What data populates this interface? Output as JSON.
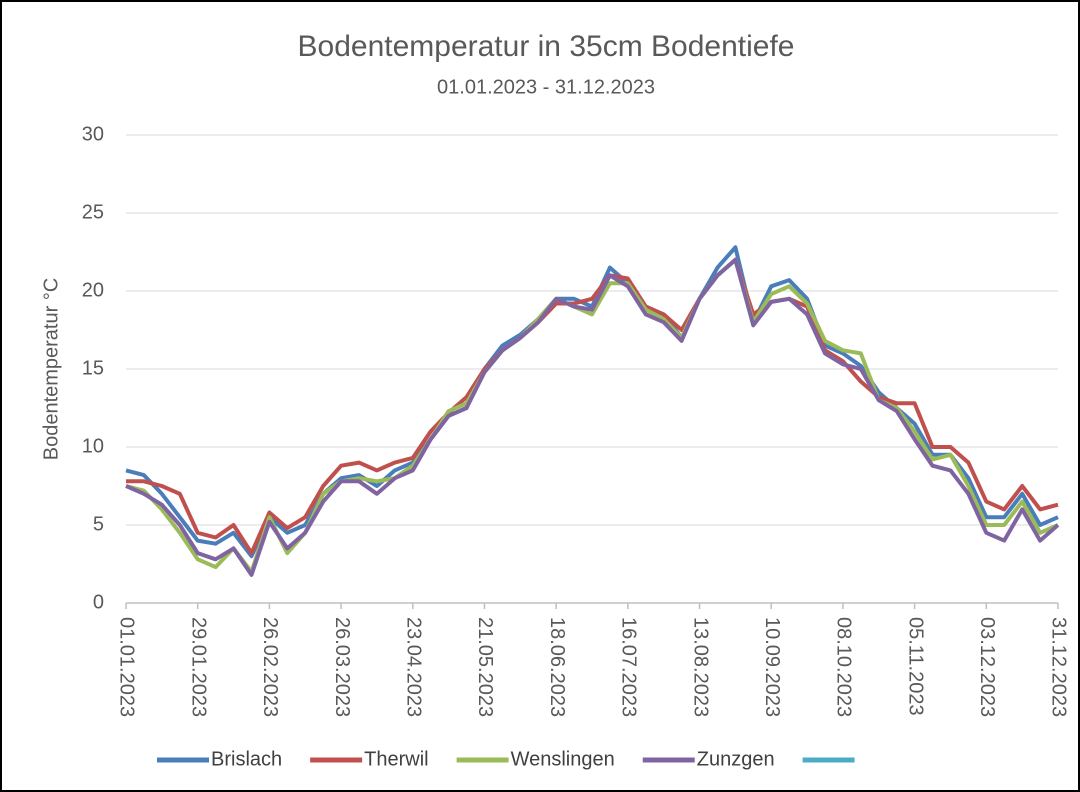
{
  "chart_data": {
    "type": "line",
    "title": "Bodentemperatur in 35cm Bodentiefe",
    "subtitle": "01.01.2023 - 31.12.2023",
    "y_label": "Bodentemperatur °C",
    "x": [
      "01.01.2023",
      "08.01.2023",
      "15.01.2023",
      "22.01.2023",
      "29.01.2023",
      "05.02.2023",
      "12.02.2023",
      "19.02.2023",
      "26.02.2023",
      "05.03.2023",
      "12.03.2023",
      "19.03.2023",
      "26.03.2023",
      "02.04.2023",
      "09.04.2023",
      "16.04.2023",
      "23.04.2023",
      "30.04.2023",
      "07.05.2023",
      "14.05.2023",
      "21.05.2023",
      "28.05.2023",
      "04.06.2023",
      "11.06.2023",
      "18.06.2023",
      "25.06.2023",
      "02.07.2023",
      "09.07.2023",
      "16.07.2023",
      "23.07.2023",
      "30.07.2023",
      "06.08.2023",
      "13.08.2023",
      "20.08.2023",
      "27.08.2023",
      "03.09.2023",
      "10.09.2023",
      "17.09.2023",
      "24.09.2023",
      "01.10.2023",
      "08.10.2023",
      "15.10.2023",
      "22.10.2023",
      "29.10.2023",
      "05.11.2023",
      "12.11.2023",
      "19.11.2023",
      "26.11.2023",
      "03.12.2023",
      "10.12.2023",
      "17.12.2023",
      "24.12.2023",
      "31.12.2023"
    ],
    "xticks": [
      "01.01.2023",
      "29.01.2023",
      "26.02.2023",
      "26.03.2023",
      "23.04.2023",
      "21.05.2023",
      "18.06.2023",
      "16.07.2023",
      "13.08.2023",
      "10.09.2023",
      "08.10.2023",
      "05.11.2023",
      "03.12.2023",
      "31.12.2023"
    ],
    "ylim": [
      0,
      30
    ],
    "yticks": [
      0,
      5,
      10,
      15,
      20,
      25,
      30
    ],
    "grid": true,
    "legend": "bottom",
    "series": [
      {
        "name": "Brislach",
        "color": "#4a7ebb",
        "values": [
          8.5,
          8.2,
          7.0,
          5.5,
          4.0,
          3.8,
          4.5,
          3.0,
          5.5,
          4.5,
          5.0,
          7.0,
          8.0,
          8.2,
          7.5,
          8.5,
          9.0,
          10.5,
          12.0,
          12.5,
          15.0,
          16.5,
          17.2,
          18.2,
          19.5,
          19.5,
          19.0,
          21.5,
          20.5,
          19.0,
          18.5,
          17.0,
          19.5,
          21.5,
          22.8,
          18.0,
          20.3,
          20.7,
          19.5,
          16.5,
          16.0,
          15.2,
          13.5,
          12.5,
          11.5,
          9.5,
          9.5,
          8.0,
          5.5,
          5.5,
          7.0,
          5.0,
          5.5
        ]
      },
      {
        "name": "Therwil",
        "color": "#c0504d",
        "values": [
          7.8,
          7.8,
          7.5,
          7.0,
          4.5,
          4.2,
          5.0,
          3.2,
          5.8,
          4.8,
          5.5,
          7.5,
          8.8,
          9.0,
          8.5,
          9.0,
          9.3,
          11.0,
          12.2,
          13.2,
          15.0,
          16.2,
          17.0,
          18.0,
          19.2,
          19.2,
          19.5,
          21.0,
          20.8,
          19.0,
          18.5,
          17.5,
          19.5,
          21.0,
          22.0,
          18.5,
          19.3,
          19.5,
          19.0,
          16.2,
          15.5,
          14.2,
          13.2,
          12.8,
          12.8,
          10.0,
          10.0,
          9.0,
          6.5,
          6.0,
          7.5,
          6.0,
          6.3
        ]
      },
      {
        "name": "Wenslingen",
        "color": "#9bbb59",
        "values": [
          7.5,
          7.2,
          6.0,
          4.5,
          2.8,
          2.3,
          3.5,
          2.0,
          5.5,
          3.2,
          4.5,
          7.0,
          7.8,
          8.0,
          7.8,
          8.0,
          8.8,
          10.5,
          12.3,
          12.8,
          14.8,
          16.2,
          17.0,
          18.2,
          19.5,
          19.0,
          18.5,
          20.5,
          20.5,
          18.8,
          18.2,
          17.0,
          19.5,
          21.0,
          22.0,
          18.0,
          19.8,
          20.3,
          19.2,
          16.8,
          16.2,
          16.0,
          13.0,
          12.5,
          11.0,
          9.2,
          9.5,
          7.5,
          5.0,
          5.0,
          6.5,
          4.5,
          5.0
        ]
      },
      {
        "name": "Zunzgen",
        "color": "#8064a2",
        "values": [
          7.5,
          7.0,
          6.3,
          5.0,
          3.2,
          2.8,
          3.5,
          1.8,
          5.2,
          3.5,
          4.5,
          6.5,
          7.8,
          7.8,
          7.0,
          8.0,
          8.5,
          10.5,
          12.0,
          12.5,
          14.8,
          16.2,
          17.0,
          18.0,
          19.5,
          19.0,
          18.8,
          21.0,
          20.3,
          18.5,
          18.0,
          16.8,
          19.5,
          21.0,
          22.0,
          17.8,
          19.3,
          19.5,
          18.5,
          16.0,
          15.3,
          15.0,
          13.0,
          12.3,
          10.5,
          8.8,
          8.5,
          7.0,
          4.5,
          4.0,
          6.0,
          4.0,
          5.0
        ]
      },
      {
        "name": null,
        "color": "#4bacc6",
        "values": [
          null,
          null,
          null,
          null,
          null,
          null,
          null,
          null,
          null,
          null,
          null,
          null,
          null,
          null,
          null,
          null,
          null,
          null,
          null,
          null,
          null,
          null,
          null,
          null,
          null,
          null,
          null,
          null,
          null,
          null,
          null,
          null,
          null,
          null,
          null,
          null,
          null,
          null,
          null,
          null,
          null,
          null,
          null,
          null,
          null,
          null,
          null,
          null,
          null,
          null,
          null,
          null,
          null
        ]
      }
    ]
  }
}
